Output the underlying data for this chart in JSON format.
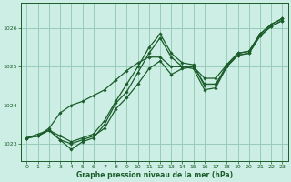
{
  "title": "Graphe pression niveau de la mer (hPa)",
  "background_color": "#cceee4",
  "grid_color": "#99ccb8",
  "line_color": "#1a5c2a",
  "marker_color": "#1a5c2a",
  "xlim": [
    -0.5,
    23.5
  ],
  "ylim": [
    1022.55,
    1026.65
  ],
  "yticks": [
    1023,
    1024,
    1025,
    1026
  ],
  "xticks": [
    0,
    1,
    2,
    3,
    4,
    5,
    6,
    7,
    8,
    9,
    10,
    11,
    12,
    13,
    14,
    15,
    16,
    17,
    18,
    19,
    20,
    21,
    22,
    23
  ],
  "series": [
    {
      "x": [
        0,
        1,
        2,
        3,
        4,
        5,
        6,
        7,
        8,
        9,
        10,
        11,
        12,
        13,
        14,
        15,
        16,
        17,
        18,
        19,
        20,
        21,
        22,
        23
      ],
      "y": [
        1023.15,
        1023.2,
        1023.35,
        1023.1,
        1023.0,
        1023.1,
        1023.2,
        1023.4,
        1023.9,
        1024.2,
        1024.55,
        1024.95,
        1025.15,
        1024.8,
        1024.95,
        1025.0,
        1024.55,
        1024.55,
        1025.0,
        1025.3,
        1025.35,
        1025.8,
        1026.05,
        1026.2
      ]
    },
    {
      "x": [
        0,
        1,
        2,
        3,
        4,
        5,
        6,
        7,
        8,
        9,
        10,
        11,
        12,
        13,
        14,
        15,
        16,
        17,
        18,
        19,
        20,
        21,
        22,
        23
      ],
      "y": [
        1023.15,
        1023.2,
        1023.35,
        1023.1,
        1022.85,
        1023.05,
        1023.15,
        1023.5,
        1024.05,
        1024.35,
        1024.85,
        1025.35,
        1025.75,
        1025.25,
        1025.0,
        1024.95,
        1024.4,
        1024.45,
        1025.0,
        1025.3,
        1025.35,
        1025.8,
        1026.05,
        1026.2
      ]
    },
    {
      "x": [
        0,
        2,
        3,
        4,
        5,
        6,
        7,
        8,
        9,
        10,
        11,
        12,
        13,
        14,
        15,
        16,
        17,
        18,
        19,
        20,
        21,
        22,
        23
      ],
      "y": [
        1023.15,
        1023.35,
        1023.2,
        1023.05,
        1023.15,
        1023.25,
        1023.6,
        1024.1,
        1024.55,
        1025.0,
        1025.5,
        1025.85,
        1025.35,
        1025.1,
        1025.05,
        1024.5,
        1024.5,
        1025.05,
        1025.35,
        1025.4,
        1025.85,
        1026.1,
        1026.25
      ]
    },
    {
      "x": [
        0,
        1,
        2,
        3,
        4,
        5,
        6,
        7,
        8,
        9,
        10,
        11,
        12,
        13,
        14,
        15,
        16,
        17,
        18,
        19,
        20,
        21,
        22,
        23
      ],
      "y": [
        1023.15,
        1023.2,
        1023.4,
        1023.8,
        1024.0,
        1024.1,
        1024.25,
        1024.4,
        1024.65,
        1024.9,
        1025.1,
        1025.25,
        1025.25,
        1025.0,
        1025.0,
        1025.0,
        1024.7,
        1024.7,
        1025.05,
        1025.35,
        1025.4,
        1025.85,
        1026.1,
        1026.25
      ]
    }
  ]
}
